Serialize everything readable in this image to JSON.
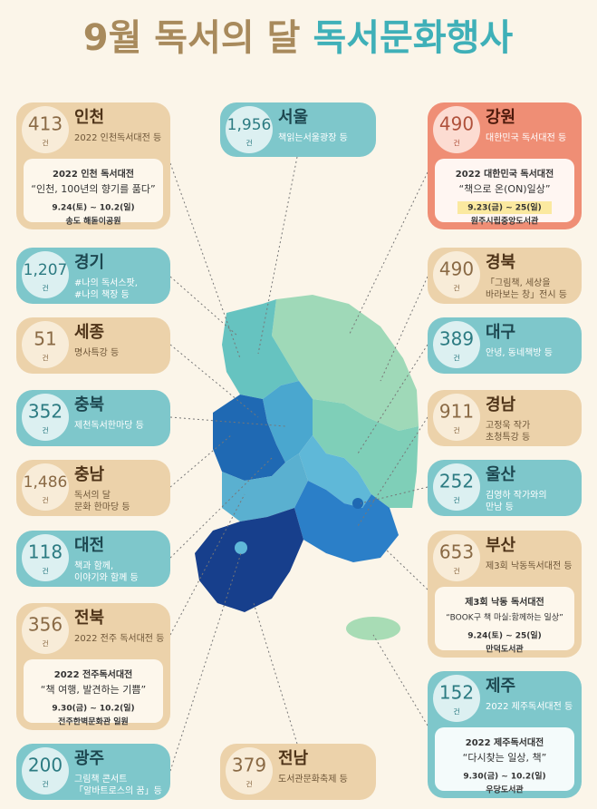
{
  "title": {
    "part1": "9월 독서의 달",
    "part2": "독서문화행사"
  },
  "unit": "건",
  "regions": [
    {
      "name": "인천",
      "count": "413",
      "desc": [
        "2022 인천독서대전 등"
      ],
      "detail": {
        "title": "2022 인천 독서대전",
        "slogan": "“인천, 100년의 향기를 품다”",
        "date": "9.24(토) ~ 10.2(일)",
        "place": "송도 해돋이공원"
      }
    },
    {
      "name": "서울",
      "count": "1,956",
      "desc": [
        "책읽는서울광장 등"
      ]
    },
    {
      "name": "강원",
      "count": "490",
      "desc": [
        "대한민국 독서대전 등"
      ],
      "detail": {
        "title": "2022 대한민국 독서대전",
        "slogan": "“책으로 온(ON)일상”",
        "date": "9.23(금) ~ 25(일)",
        "place": "원주시립중앙도서관"
      }
    },
    {
      "name": "경기",
      "count": "1,207",
      "desc": [
        "#나의 독서스팟,",
        "#나의 책장 등"
      ]
    },
    {
      "name": "경북",
      "count": "490",
      "desc": [
        "「그림책, 세상을",
        "바라보는 창」전시 등"
      ]
    },
    {
      "name": "세종",
      "count": "51",
      "desc": [
        "명사특강 등"
      ]
    },
    {
      "name": "대구",
      "count": "389",
      "desc": [
        "안녕, 동네책방 등"
      ]
    },
    {
      "name": "충북",
      "count": "352",
      "desc": [
        "제천독서한마당 등"
      ]
    },
    {
      "name": "경남",
      "count": "911",
      "desc": [
        "고정욱 작가",
        "초청특강 등"
      ]
    },
    {
      "name": "충남",
      "count": "1,486",
      "desc": [
        "독서의 달",
        "문화 한마당 등"
      ]
    },
    {
      "name": "울산",
      "count": "252",
      "desc": [
        "김영하 작가와의",
        "만남 등"
      ]
    },
    {
      "name": "대전",
      "count": "118",
      "desc": [
        "책과 함께,",
        "이야기와 함께 등"
      ]
    },
    {
      "name": "부산",
      "count": "653",
      "desc": [
        "제3회 낙동독서대전 등"
      ],
      "detail": {
        "title": "제3회 낙동 독서대전",
        "slogan": "“BOOK구 책 마실:함께하는 일상”",
        "date": "9.24(토) ~ 25(일)",
        "place": "만덕도서관"
      }
    },
    {
      "name": "전북",
      "count": "356",
      "desc": [
        "2022 전주 독서대전 등"
      ],
      "detail": {
        "title": "2022 전주독서대전",
        "slogan": "“책 여행, 발견하는 기쁨”",
        "date": "9.30(금) ~ 10.2(일)",
        "place": "전주한벽문화관 일원"
      }
    },
    {
      "name": "제주",
      "count": "152",
      "desc": [
        "2022 제주독서대전 등"
      ],
      "detail": {
        "title": "2022 제주독서대전",
        "slogan": "“다시찾는 일상, 책”",
        "date": "9.30(금) ~ 10.2(일)",
        "place": "우당도서관"
      }
    },
    {
      "name": "광주",
      "count": "200",
      "desc": [
        "그림책 콘서트",
        "「알바트로스의 꿈」등"
      ]
    },
    {
      "name": "전남",
      "count": "379",
      "desc": [
        "도서관문화축제 등"
      ]
    }
  ]
}
